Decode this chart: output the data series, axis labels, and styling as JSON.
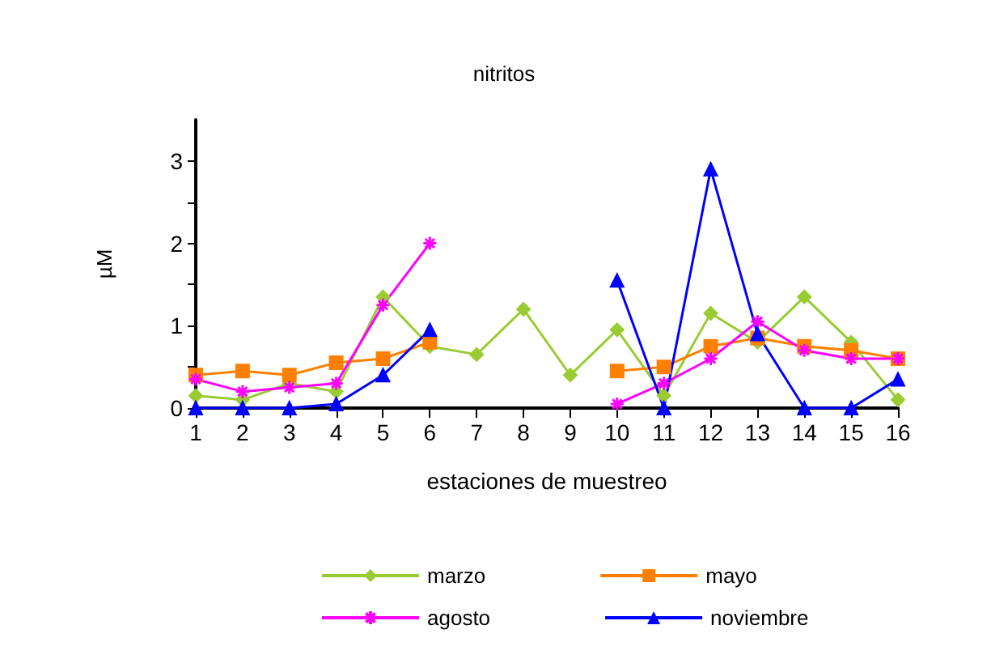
{
  "chart_data": {
    "type": "line",
    "title": "nitritos",
    "xlabel": "estaciones de muestreo",
    "ylabel": "µM",
    "categories": [
      "1",
      "2",
      "3",
      "4",
      "5",
      "6",
      "7",
      "8",
      "9",
      "10",
      "11",
      "12",
      "13",
      "14",
      "15",
      "16"
    ],
    "series": [
      {
        "name": "marzo",
        "color": "#99cc33",
        "marker": "diamond",
        "values": [
          0.15,
          0.1,
          0.3,
          0.2,
          1.35,
          0.75,
          0.65,
          1.2,
          0.4,
          0.95,
          0.15,
          1.15,
          0.8,
          1.35,
          0.8,
          0.1
        ]
      },
      {
        "name": "mayo",
        "color": "#ff8000",
        "marker": "square",
        "values": [
          0.4,
          0.45,
          0.4,
          0.55,
          0.6,
          0.8,
          null,
          null,
          null,
          0.45,
          0.5,
          0.75,
          0.85,
          0.75,
          0.7,
          0.6
        ]
      },
      {
        "name": "agosto",
        "color": "#ff00ff",
        "marker": "cross",
        "values": [
          0.35,
          0.2,
          0.25,
          0.3,
          1.25,
          2.0,
          null,
          null,
          null,
          0.05,
          0.3,
          0.6,
          1.05,
          0.7,
          0.6,
          0.6
        ]
      },
      {
        "name": "noviembre",
        "color": "#0000ff",
        "marker": "triangle",
        "values": [
          0,
          0,
          0,
          0.05,
          0.4,
          0.95,
          null,
          null,
          null,
          1.55,
          0,
          2.9,
          0.9,
          0,
          0,
          0.35
        ]
      }
    ],
    "ylim": [
      0,
      3.5
    ],
    "yticks": [
      0,
      {
        "value": 0.5,
        "label": null
      },
      1,
      {
        "value": 1.5,
        "label": null
      },
      2,
      {
        "value": 2.5,
        "label": null
      },
      3
    ],
    "grid": false,
    "legend": "bottom",
    "line_style": "solid"
  }
}
